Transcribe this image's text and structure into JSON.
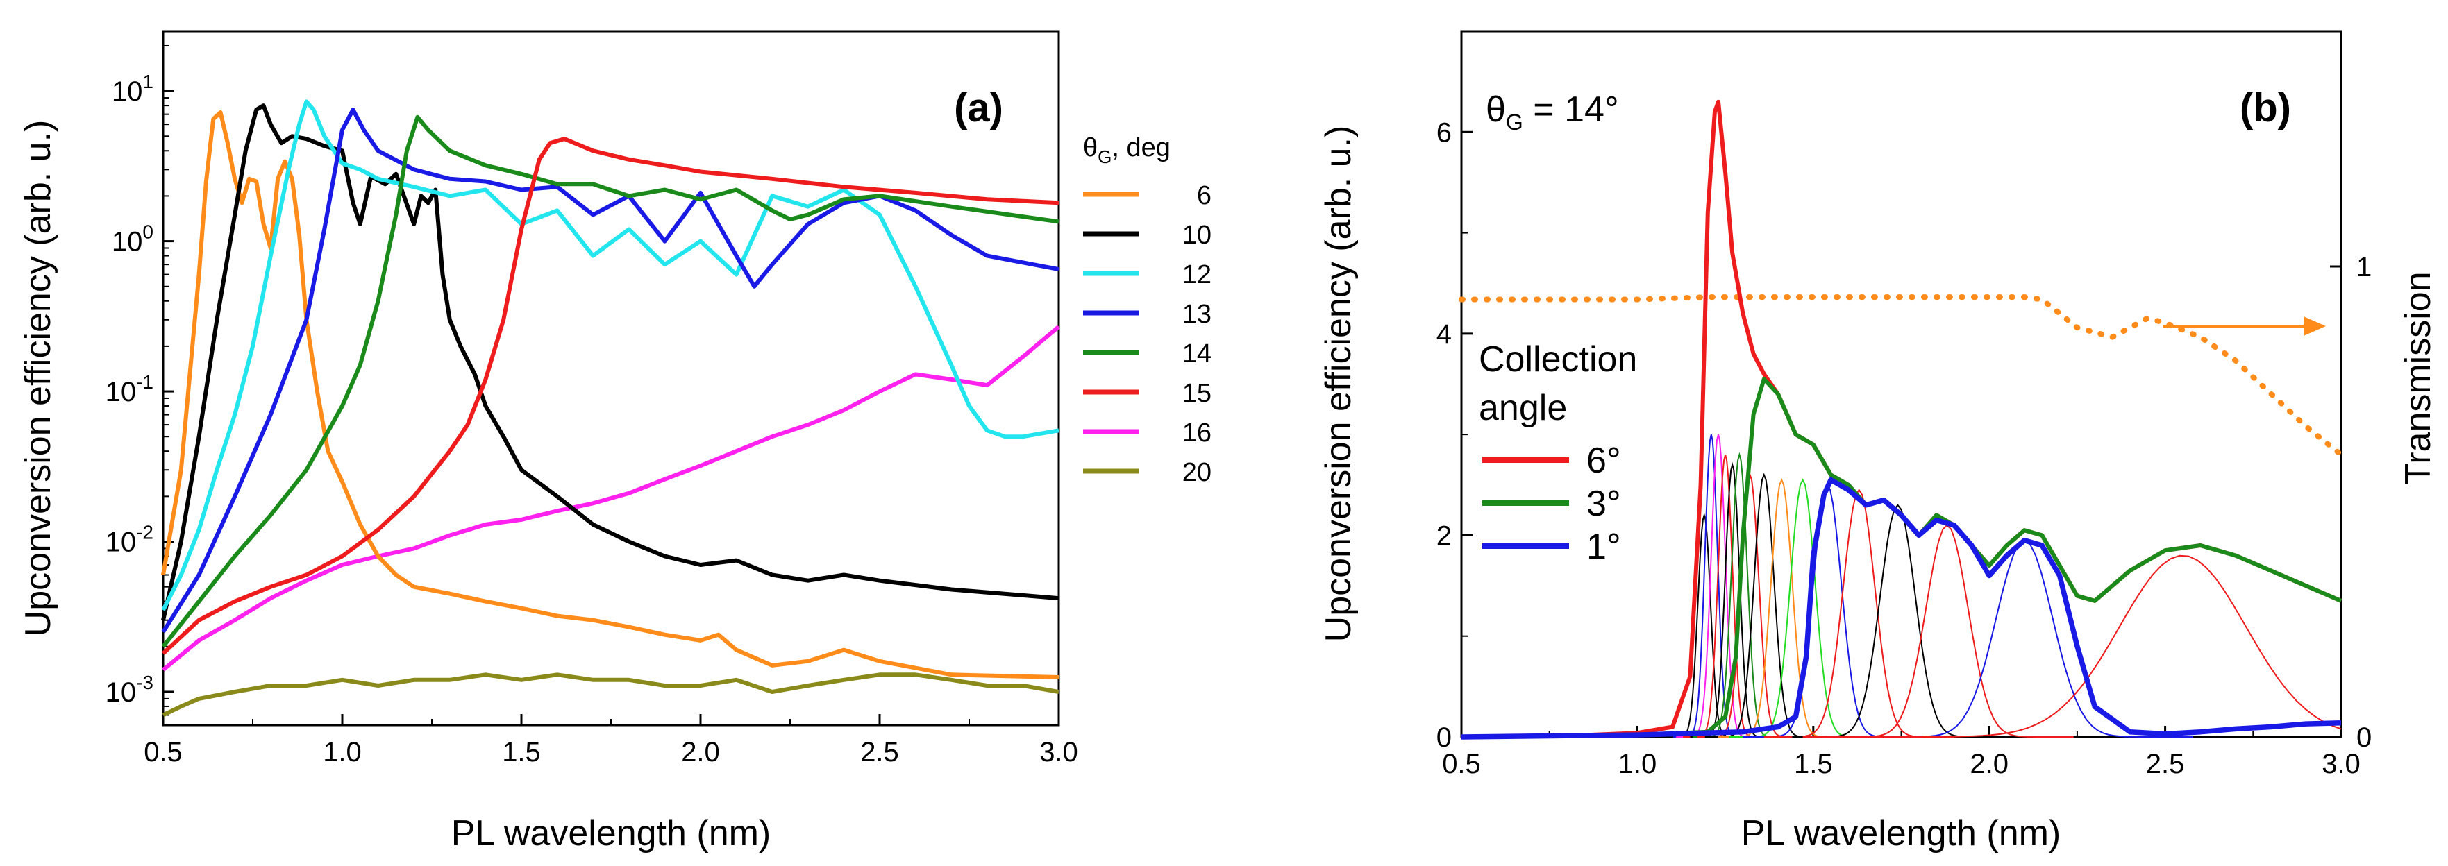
{
  "chart_data": [
    {
      "type": "line",
      "panel_label": "(a)",
      "xlabel": "PL wavelength (nm)",
      "ylabel": "Upconversion efficiency (arb. u.)",
      "xlim": [
        0.5,
        3.0
      ],
      "ylim": [
        0.0006,
        25
      ],
      "yscale": "log",
      "xticks": [
        "0.5",
        "1.0",
        "1.5",
        "2.0",
        "2.5",
        "3.0"
      ],
      "yticks": [
        {
          "value": 0.001,
          "base": "10",
          "exp": "-3"
        },
        {
          "value": 0.01,
          "base": "10",
          "exp": "-2"
        },
        {
          "value": 0.1,
          "base": "10",
          "exp": "-1"
        },
        {
          "value": 1,
          "base": "10",
          "exp": "0"
        },
        {
          "value": 10,
          "base": "10",
          "exp": "1"
        }
      ],
      "legend": {
        "title_sym": "θ",
        "title_sub": "G",
        "title_rest": ", deg",
        "placement": "right-outside"
      },
      "series": [
        {
          "name": "6",
          "color": "#ff8c1a",
          "x": [
            0.5,
            0.55,
            0.6,
            0.62,
            0.64,
            0.66,
            0.68,
            0.7,
            0.72,
            0.74,
            0.76,
            0.78,
            0.8,
            0.82,
            0.84,
            0.86,
            0.88,
            0.9,
            0.93,
            0.96,
            1.0,
            1.05,
            1.1,
            1.15,
            1.2,
            1.3,
            1.4,
            1.5,
            1.6,
            1.7,
            1.8,
            1.9,
            2.0,
            2.05,
            2.1,
            2.2,
            2.3,
            2.4,
            2.5,
            2.7,
            3.0
          ],
          "y": [
            0.006,
            0.03,
            0.6,
            2.5,
            6.5,
            7.2,
            4.5,
            2.6,
            1.8,
            2.6,
            2.5,
            1.3,
            0.9,
            2.6,
            3.4,
            2.6,
            1.1,
            0.3,
            0.1,
            0.04,
            0.025,
            0.013,
            0.008,
            0.006,
            0.005,
            0.0045,
            0.004,
            0.0036,
            0.0032,
            0.003,
            0.0027,
            0.0024,
            0.0022,
            0.0024,
            0.0019,
            0.0015,
            0.0016,
            0.0019,
            0.0016,
            0.0013,
            0.00125
          ]
        },
        {
          "name": "10",
          "color": "#000000",
          "x": [
            0.5,
            0.55,
            0.6,
            0.65,
            0.7,
            0.73,
            0.76,
            0.78,
            0.8,
            0.83,
            0.86,
            0.9,
            0.95,
            1.0,
            1.03,
            1.05,
            1.08,
            1.12,
            1.15,
            1.2,
            1.22,
            1.24,
            1.26,
            1.28,
            1.3,
            1.33,
            1.37,
            1.4,
            1.45,
            1.5,
            1.6,
            1.7,
            1.8,
            1.9,
            2.0,
            2.1,
            2.2,
            2.3,
            2.4,
            2.5,
            2.7,
            3.0
          ],
          "y": [
            0.003,
            0.01,
            0.05,
            0.3,
            1.5,
            4,
            7.5,
            8,
            6,
            4.5,
            5,
            4.8,
            4.3,
            4,
            1.8,
            1.3,
            2.7,
            2.4,
            2.8,
            1.3,
            2,
            1.8,
            2.2,
            0.6,
            0.3,
            0.2,
            0.13,
            0.08,
            0.05,
            0.03,
            0.02,
            0.013,
            0.01,
            0.008,
            0.007,
            0.0075,
            0.006,
            0.0055,
            0.006,
            0.0055,
            0.0048,
            0.0042
          ]
        },
        {
          "name": "12",
          "color": "#22e5ee",
          "x": [
            0.5,
            0.55,
            0.6,
            0.65,
            0.7,
            0.75,
            0.8,
            0.85,
            0.88,
            0.9,
            0.92,
            0.95,
            1.0,
            1.05,
            1.1,
            1.2,
            1.3,
            1.4,
            1.5,
            1.6,
            1.7,
            1.8,
            1.9,
            2.0,
            2.1,
            2.2,
            2.3,
            2.4,
            2.5,
            2.6,
            2.7,
            2.75,
            2.8,
            2.85,
            2.9,
            3.0
          ],
          "y": [
            0.0035,
            0.006,
            0.012,
            0.03,
            0.07,
            0.2,
            0.8,
            3,
            6,
            8.5,
            7.5,
            5,
            3.3,
            3,
            2.6,
            2.3,
            2,
            2.2,
            1.3,
            1.6,
            0.8,
            1.2,
            0.7,
            1,
            0.6,
            2,
            1.7,
            2.2,
            1.5,
            0.5,
            0.15,
            0.08,
            0.055,
            0.05,
            0.05,
            0.055
          ]
        },
        {
          "name": "13",
          "color": "#1a1ae6",
          "x": [
            0.5,
            0.6,
            0.7,
            0.8,
            0.9,
            0.95,
            1.0,
            1.03,
            1.06,
            1.1,
            1.2,
            1.3,
            1.4,
            1.5,
            1.6,
            1.7,
            1.8,
            1.9,
            2.0,
            2.1,
            2.15,
            2.2,
            2.3,
            2.4,
            2.5,
            2.6,
            2.7,
            2.8,
            3.0
          ],
          "y": [
            0.0025,
            0.006,
            0.02,
            0.07,
            0.3,
            1.2,
            5.5,
            7.5,
            5.5,
            4,
            3,
            2.6,
            2.5,
            2.2,
            2.3,
            1.5,
            2,
            1,
            2.1,
            0.8,
            0.5,
            0.7,
            1.3,
            1.8,
            2,
            1.6,
            1.1,
            0.8,
            0.65
          ]
        },
        {
          "name": "14",
          "color": "#1a8a1a",
          "x": [
            0.5,
            0.6,
            0.7,
            0.8,
            0.9,
            1.0,
            1.05,
            1.1,
            1.15,
            1.18,
            1.21,
            1.24,
            1.3,
            1.4,
            1.5,
            1.6,
            1.7,
            1.8,
            1.9,
            2.0,
            2.1,
            2.2,
            2.25,
            2.3,
            2.4,
            2.5,
            2.7,
            3.0
          ],
          "y": [
            0.002,
            0.004,
            0.008,
            0.015,
            0.03,
            0.08,
            0.15,
            0.4,
            1.5,
            4,
            6.7,
            5.5,
            4,
            3.2,
            2.8,
            2.4,
            2.4,
            2,
            2.2,
            1.9,
            2.2,
            1.6,
            1.4,
            1.5,
            1.9,
            2,
            1.7,
            1.35
          ]
        },
        {
          "name": "15",
          "color": "#ee1c1c",
          "x": [
            0.5,
            0.6,
            0.7,
            0.8,
            0.9,
            1.0,
            1.1,
            1.2,
            1.3,
            1.35,
            1.4,
            1.45,
            1.5,
            1.55,
            1.58,
            1.62,
            1.7,
            1.8,
            1.9,
            2.0,
            2.2,
            2.4,
            2.6,
            2.8,
            3.0
          ],
          "y": [
            0.0018,
            0.003,
            0.004,
            0.005,
            0.006,
            0.008,
            0.012,
            0.02,
            0.04,
            0.06,
            0.12,
            0.3,
            1.2,
            3.5,
            4.5,
            4.8,
            4,
            3.5,
            3.2,
            2.9,
            2.6,
            2.3,
            2.1,
            1.9,
            1.8
          ]
        },
        {
          "name": "16",
          "color": "#ff22ee",
          "x": [
            0.5,
            0.6,
            0.7,
            0.8,
            0.9,
            1.0,
            1.1,
            1.2,
            1.3,
            1.4,
            1.5,
            1.6,
            1.7,
            1.8,
            1.9,
            2.0,
            2.1,
            2.2,
            2.3,
            2.4,
            2.5,
            2.6,
            2.7,
            2.8,
            2.9,
            3.0
          ],
          "y": [
            0.0014,
            0.0022,
            0.003,
            0.0042,
            0.0055,
            0.007,
            0.008,
            0.009,
            0.011,
            0.013,
            0.014,
            0.016,
            0.018,
            0.021,
            0.026,
            0.032,
            0.04,
            0.05,
            0.06,
            0.075,
            0.1,
            0.13,
            0.12,
            0.11,
            0.17,
            0.27
          ]
        },
        {
          "name": "20",
          "color": "#8a8a1a",
          "x": [
            0.5,
            0.55,
            0.6,
            0.7,
            0.8,
            0.9,
            1.0,
            1.1,
            1.2,
            1.3,
            1.4,
            1.5,
            1.6,
            1.7,
            1.8,
            1.9,
            2.0,
            2.1,
            2.2,
            2.3,
            2.4,
            2.5,
            2.6,
            2.7,
            2.8,
            2.9,
            3.0
          ],
          "y": [
            0.0007,
            0.0008,
            0.0009,
            0.001,
            0.0011,
            0.0011,
            0.0012,
            0.0011,
            0.0012,
            0.0012,
            0.0013,
            0.0012,
            0.0013,
            0.0012,
            0.0012,
            0.0011,
            0.0011,
            0.0012,
            0.001,
            0.0011,
            0.0012,
            0.0013,
            0.0013,
            0.0012,
            0.0011,
            0.0011,
            0.001
          ]
        }
      ]
    },
    {
      "type": "line",
      "panel_label": "(b)",
      "xlabel": "PL wavelength (nm)",
      "ylabel": "Upconversion efficiency (arb. u.)",
      "ylabel_right": "Transmission",
      "xlim": [
        0.5,
        3.0
      ],
      "ylim": [
        0,
        7
      ],
      "ylim_right": [
        0,
        1.5
      ],
      "xticks": [
        "0.5",
        "1.0",
        "1.5",
        "2.0",
        "2.5",
        "3.0"
      ],
      "yticks": [
        "0",
        "2",
        "4",
        "6"
      ],
      "yticks_right": [
        "0",
        "1"
      ],
      "annotation": {
        "sym": "θ",
        "sub": "G",
        "rest": " = 14°"
      },
      "legend": {
        "title_line1": "Collection",
        "title_line2": "angle",
        "placement": "middle-left"
      },
      "series": [
        {
          "name": "6°",
          "color": "#ee1c1c",
          "width": 4,
          "x": [
            0.5,
            0.8,
            1.0,
            1.1,
            1.15,
            1.18,
            1.2,
            1.22,
            1.23,
            1.25,
            1.27,
            1.3,
            1.33,
            1.36,
            1.4,
            1.45,
            1.5,
            1.55,
            1.6,
            1.65,
            1.7,
            1.75,
            1.8,
            1.85,
            1.9,
            1.95,
            2.0,
            2.05,
            2.1,
            2.15,
            2.2,
            2.25,
            2.3,
            2.4,
            2.5,
            2.6,
            2.7,
            2.8,
            2.9,
            3.0
          ],
          "y": [
            0,
            0.01,
            0.04,
            0.1,
            0.6,
            2.5,
            5.2,
            6.2,
            6.3,
            5.6,
            4.8,
            4.2,
            3.8,
            3.6,
            3.4,
            3.0,
            2.9,
            2.6,
            2.5,
            2.3,
            2.35,
            2.2,
            2.0,
            2.2,
            2.1,
            1.9,
            1.7,
            1.9,
            2.05,
            2.0,
            1.7,
            1.4,
            1.35,
            1.65,
            1.85,
            1.9,
            1.8,
            1.65,
            1.5,
            1.35
          ]
        },
        {
          "name": "3°",
          "color": "#1a8a1a",
          "width": 4,
          "x": [
            0.5,
            1.0,
            1.2,
            1.25,
            1.28,
            1.3,
            1.33,
            1.36,
            1.4,
            1.45,
            1.5,
            1.55,
            1.6,
            1.65,
            1.7,
            1.75,
            1.8,
            1.85,
            1.9,
            1.95,
            2.0,
            2.05,
            2.1,
            2.15,
            2.2,
            2.25,
            2.3,
            2.4,
            2.5,
            2.6,
            2.7,
            2.8,
            2.9,
            3.0
          ],
          "y": [
            0,
            0.02,
            0.05,
            0.2,
            0.8,
            2.0,
            3.2,
            3.55,
            3.4,
            3.0,
            2.9,
            2.6,
            2.5,
            2.3,
            2.35,
            2.2,
            2.0,
            2.2,
            2.1,
            1.9,
            1.7,
            1.9,
            2.05,
            2.0,
            1.7,
            1.4,
            1.35,
            1.65,
            1.85,
            1.9,
            1.8,
            1.65,
            1.5,
            1.35
          ]
        },
        {
          "name": "1°",
          "color": "#1a1ae6",
          "width": 5,
          "x": [
            0.5,
            1.0,
            1.3,
            1.4,
            1.45,
            1.48,
            1.5,
            1.53,
            1.55,
            1.6,
            1.65,
            1.7,
            1.75,
            1.8,
            1.85,
            1.9,
            1.95,
            2.0,
            2.05,
            2.1,
            2.15,
            2.2,
            2.25,
            2.3,
            2.4,
            2.5,
            2.6,
            2.7,
            2.8,
            2.9,
            3.0
          ],
          "y": [
            0,
            0.02,
            0.05,
            0.1,
            0.2,
            0.8,
            1.8,
            2.4,
            2.55,
            2.45,
            2.3,
            2.35,
            2.2,
            2.0,
            2.15,
            2.1,
            1.9,
            1.6,
            1.8,
            1.95,
            1.9,
            1.6,
            0.9,
            0.3,
            0.05,
            0.03,
            0.05,
            0.08,
            0.1,
            0.13,
            0.14
          ]
        }
      ],
      "thin_peaks": [
        {
          "color": "#000000",
          "center": 1.19,
          "height": 2.2,
          "width": 0.018
        },
        {
          "color": "#1a1ae6",
          "center": 1.21,
          "height": 3.0,
          "width": 0.018
        },
        {
          "color": "#ff22ee",
          "center": 1.23,
          "height": 3.0,
          "width": 0.02
        },
        {
          "color": "#ee1c1c",
          "center": 1.25,
          "height": 2.8,
          "width": 0.02
        },
        {
          "color": "#000000",
          "center": 1.27,
          "height": 2.7,
          "width": 0.02
        },
        {
          "color": "#1a8a1a",
          "center": 1.29,
          "height": 2.8,
          "width": 0.022
        },
        {
          "color": "#ee1c1c",
          "center": 1.32,
          "height": 2.6,
          "width": 0.025
        },
        {
          "color": "#000000",
          "center": 1.36,
          "height": 2.6,
          "width": 0.028
        },
        {
          "color": "#ff8c1a",
          "center": 1.41,
          "height": 2.55,
          "width": 0.03
        },
        {
          "color": "#22dd22",
          "center": 1.47,
          "height": 2.55,
          "width": 0.035
        },
        {
          "color": "#1a1ae6",
          "center": 1.54,
          "height": 2.5,
          "width": 0.04
        },
        {
          "color": "#ee1c1c",
          "center": 1.63,
          "height": 2.45,
          "width": 0.045
        },
        {
          "color": "#000000",
          "center": 1.74,
          "height": 2.3,
          "width": 0.05
        },
        {
          "color": "#ee1c1c",
          "center": 1.88,
          "height": 2.1,
          "width": 0.06
        },
        {
          "color": "#1a1ae6",
          "center": 2.1,
          "height": 1.95,
          "width": 0.08
        },
        {
          "color": "#ee1c1c",
          "center": 2.55,
          "height": 1.8,
          "width": 0.18
        }
      ],
      "transmission": {
        "name": "Transmission",
        "color": "#ff8c1a",
        "x": [
          0.5,
          0.8,
          1.0,
          1.2,
          1.4,
          1.6,
          1.8,
          2.0,
          2.1,
          2.15,
          2.2,
          2.25,
          2.3,
          2.35,
          2.4,
          2.45,
          2.5,
          2.6,
          2.7,
          2.8,
          2.9,
          3.0
        ],
        "y": [
          0.93,
          0.93,
          0.93,
          0.935,
          0.935,
          0.935,
          0.935,
          0.935,
          0.935,
          0.93,
          0.9,
          0.87,
          0.86,
          0.85,
          0.87,
          0.89,
          0.88,
          0.85,
          0.8,
          0.73,
          0.66,
          0.6
        ]
      }
    }
  ]
}
